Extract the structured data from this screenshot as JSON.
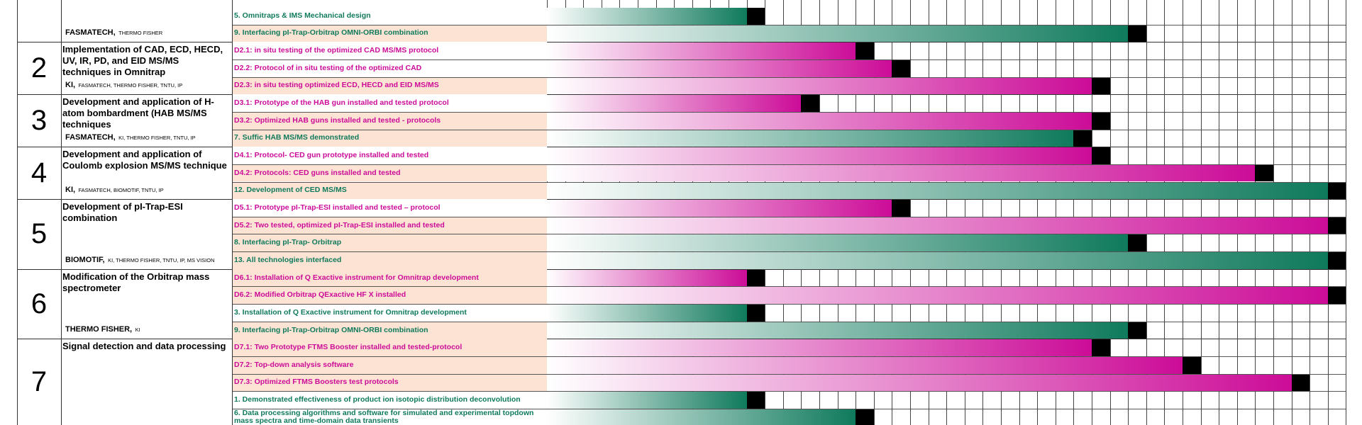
{
  "grid_columns": 44,
  "work_packages": [
    {
      "partners": {
        "lead": "FASMATECH,",
        "others": "THERMO FISHER"
      },
      "tasks": [
        {
          "label": "5. Omnitraps & IMS Mechanical design",
          "color": "#0f7a5c",
          "end": 12,
          "shaded": false
        },
        {
          "label": "9. Interfacing pI-Trap-Orbitrap OMNI-ORBI combination",
          "color": "#0f7a5c",
          "end": 33,
          "shaded": true
        }
      ]
    },
    {
      "number": "2",
      "title": "Implementation of CAD, ECD, HECD, UV, IR, PD, and EID MS/MS techniques in Omnitrap",
      "partners": {
        "lead": "KI,",
        "others": "FASMATECH, THERMO FISHER, TNTU, IP"
      },
      "tasks": [
        {
          "label": "D2.1: in situ testing of the optimized CAD MS/MS protocol",
          "color": "#cc0c98",
          "end": 18,
          "shaded": false
        },
        {
          "label": "D2.2: Protocol of in situ testing of the optimized CAD",
          "color": "#cc0c98",
          "end": 20,
          "shaded": false
        },
        {
          "label": "D2.3: in situ testing optimized ECD, HECD and EID MS/MS",
          "color": "#cc0c98",
          "end": 31,
          "shaded": true
        }
      ]
    },
    {
      "number": "3",
      "title": "Development and application of H-atom bombardment (HAB MS/MS techniques",
      "partners": {
        "lead": "FASMATECH,",
        "others": "KI, THERMO FISHER, TNTU, IP"
      },
      "tasks": [
        {
          "label": "D3.1: Prototype of the HAB gun installed and tested protocol",
          "color": "#cc0c98",
          "end": 15,
          "shaded": false
        },
        {
          "label": "D3.2: Optimized HAB guns installed and tested - protocols",
          "color": "#cc0c98",
          "end": 31,
          "shaded": true
        },
        {
          "label": "7. Suffic HAB MS/MS demonstrated",
          "color": "#0f7a5c",
          "end": 30,
          "shaded": true
        }
      ]
    },
    {
      "number": "4",
      "title": "Development and application of Coulomb explosion MS/MS technique",
      "partners": {
        "lead": "KI,",
        "others": "FASMATECH, BIOMOTIF, TNTU, IP"
      },
      "tasks": [
        {
          "label": "D4.1: Protocol- CED gun prototype installed and tested",
          "color": "#cc0c98",
          "end": 31,
          "shaded": false
        },
        {
          "label": "D4.2: Protocols: CED guns installed and tested",
          "color": "#cc0c98",
          "end": 40,
          "shaded": true
        },
        {
          "label": "12. Development of CED MS/MS",
          "color": "#0f7a5c",
          "end": 44,
          "shaded": true
        }
      ]
    },
    {
      "number": "5",
      "title": "Development of pI-Trap-ESI combination",
      "partners": {
        "lead": "BIOMOTIF,",
        "others": "KI, THERMO FISHER, TNTU, IP, MS VISION"
      },
      "tasks": [
        {
          "label": "D5.1: Prototype pI-Trap-ESI installed and tested – protocol",
          "color": "#cc0c98",
          "end": 20,
          "shaded": false
        },
        {
          "label": "D5.2: Two tested, optimized pI-Trap-ESI installed and tested",
          "color": "#cc0c98",
          "end": 44,
          "shaded": true
        },
        {
          "label": "8. Interfacing pI-Trap- Orbitrap",
          "color": "#0f7a5c",
          "end": 33,
          "shaded": true
        },
        {
          "label": "13. All technologies interfaced",
          "color": "#0f7a5c",
          "end": 44,
          "shaded": true
        }
      ]
    },
    {
      "number": "6",
      "title": "Modification of the Orbitrap mass spectrometer",
      "partners": {
        "lead": "THERMO FISHER,",
        "others": "KI"
      },
      "tasks": [
        {
          "label": "D6.1: Installation of Q Exactive instrument for Omnitrap development",
          "color": "#cc0c98",
          "end": 12,
          "shaded": true
        },
        {
          "label": "D6.2: Modified Orbitrap QExactive HF X installed",
          "color": "#cc0c98",
          "end": 44,
          "shaded": true
        },
        {
          "label": "3. Installation of Q Exactive instrument for Omnitrap development",
          "color": "#0f7a5c",
          "end": 12,
          "shaded": false
        },
        {
          "label": "9. Interfacing pI-Trap-Orbitrap OMNI-ORBI combination",
          "color": "#0f7a5c",
          "end": 33,
          "shaded": true
        }
      ]
    },
    {
      "number": "7",
      "title": "Signal detection and data processing",
      "tasks": [
        {
          "label": "D7.1: Two Prototype FTMS Booster installed and tested-protocol",
          "color": "#cc0c98",
          "end": 31,
          "shaded": true
        },
        {
          "label": "D7.2: Top-down analysis software",
          "color": "#cc0c98",
          "end": 36,
          "shaded": true
        },
        {
          "label": "D7.3: Optimized FTMS Boosters test protocols",
          "color": "#cc0c98",
          "end": 42,
          "shaded": true
        },
        {
          "label": "1. Demonstrated effectiveness of product ion isotopic distribution deconvolution",
          "color": "#0f7a5c",
          "end": 12,
          "shaded": false
        },
        {
          "label": "6. Data processing algorithms and software for simulated and experimental  topdown mass spectra and time-domain data transients",
          "color": "#0f7a5c",
          "end": 18,
          "shaded": false
        }
      ]
    }
  ]
}
